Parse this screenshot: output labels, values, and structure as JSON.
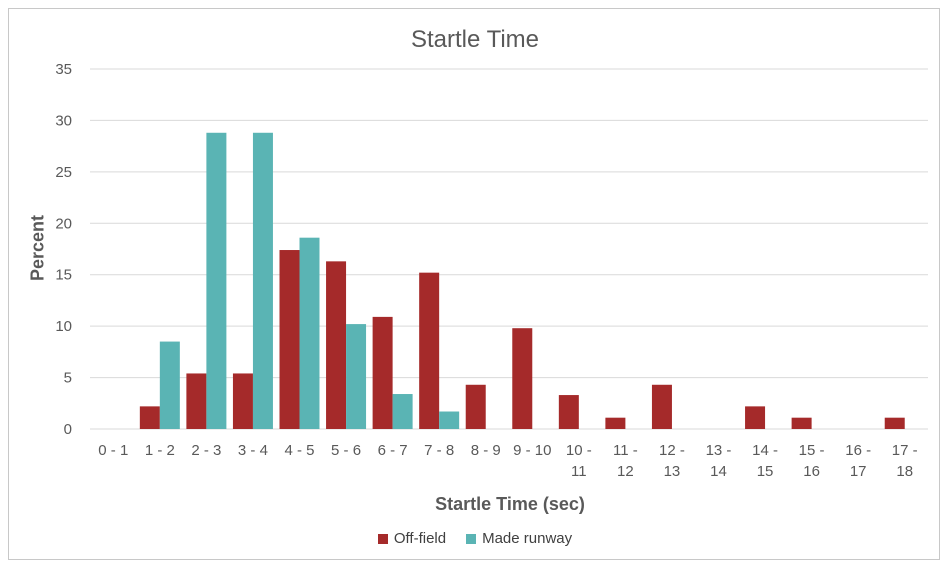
{
  "chart_data": {
    "type": "bar",
    "title": "Startle Time",
    "xlabel": "Startle Time (sec)",
    "ylabel": "Percent",
    "ylim": [
      0,
      35
    ],
    "yticks": [
      0,
      5,
      10,
      15,
      20,
      25,
      30,
      35
    ],
    "grid": true,
    "legend_position": "bottom",
    "categories": [
      [
        "0 - 1"
      ],
      [
        "1 - 2"
      ],
      [
        "2 - 3"
      ],
      [
        "3 - 4"
      ],
      [
        "4 - 5"
      ],
      [
        "5 - 6"
      ],
      [
        "6 - 7"
      ],
      [
        "7 - 8"
      ],
      [
        "8 - 9"
      ],
      [
        "9 - 10"
      ],
      [
        "10 -",
        "11"
      ],
      [
        "11 -",
        "12"
      ],
      [
        "12 -",
        "13"
      ],
      [
        "13 -",
        "14"
      ],
      [
        "14 -",
        "15"
      ],
      [
        "15 -",
        "16"
      ],
      [
        "16 -",
        "17"
      ],
      [
        "17 -",
        "18"
      ]
    ],
    "series": [
      {
        "name": "Off-field",
        "color": "#a52a2a",
        "values": [
          0,
          2.2,
          5.4,
          5.4,
          17.4,
          16.3,
          10.9,
          15.2,
          4.3,
          9.8,
          3.3,
          1.1,
          4.3,
          0,
          2.2,
          1.1,
          0,
          1.1
        ]
      },
      {
        "name": "Made runway",
        "color": "#5ab4b4",
        "values": [
          0,
          8.5,
          28.8,
          28.8,
          18.6,
          10.2,
          3.4,
          1.7,
          0,
          0,
          0,
          0,
          0,
          0,
          0,
          0,
          0,
          0
        ]
      }
    ]
  }
}
